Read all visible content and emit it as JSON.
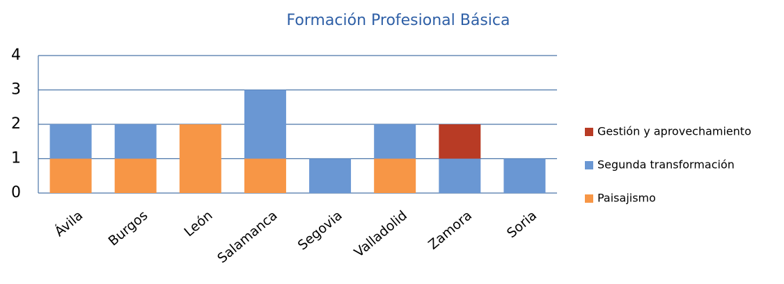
{
  "chart_data": {
    "type": "stacked_bar",
    "title": "Formación Profesional Básica",
    "categories": [
      "Ávila",
      "Burgos",
      "León",
      "Salamanca",
      "Segovia",
      "Valladolid",
      "Zamora",
      "Soria"
    ],
    "series": [
      {
        "name": "Paisajismo",
        "color": "#f79646",
        "values": [
          1,
          1,
          2,
          1,
          0,
          1,
          0,
          0
        ]
      },
      {
        "name": "Segunda transformación",
        "color": "#6a97d3",
        "values": [
          1,
          1,
          0,
          2,
          1,
          1,
          1,
          1
        ]
      },
      {
        "name": "Gestión y aprovechamiento",
        "color": "#b83b25",
        "values": [
          0,
          0,
          0,
          0,
          0,
          0,
          1,
          0
        ]
      }
    ],
    "ylim": [
      0,
      4
    ],
    "yticks": [
      0,
      1,
      2,
      3,
      4
    ],
    "grid": true,
    "legend": "right"
  }
}
